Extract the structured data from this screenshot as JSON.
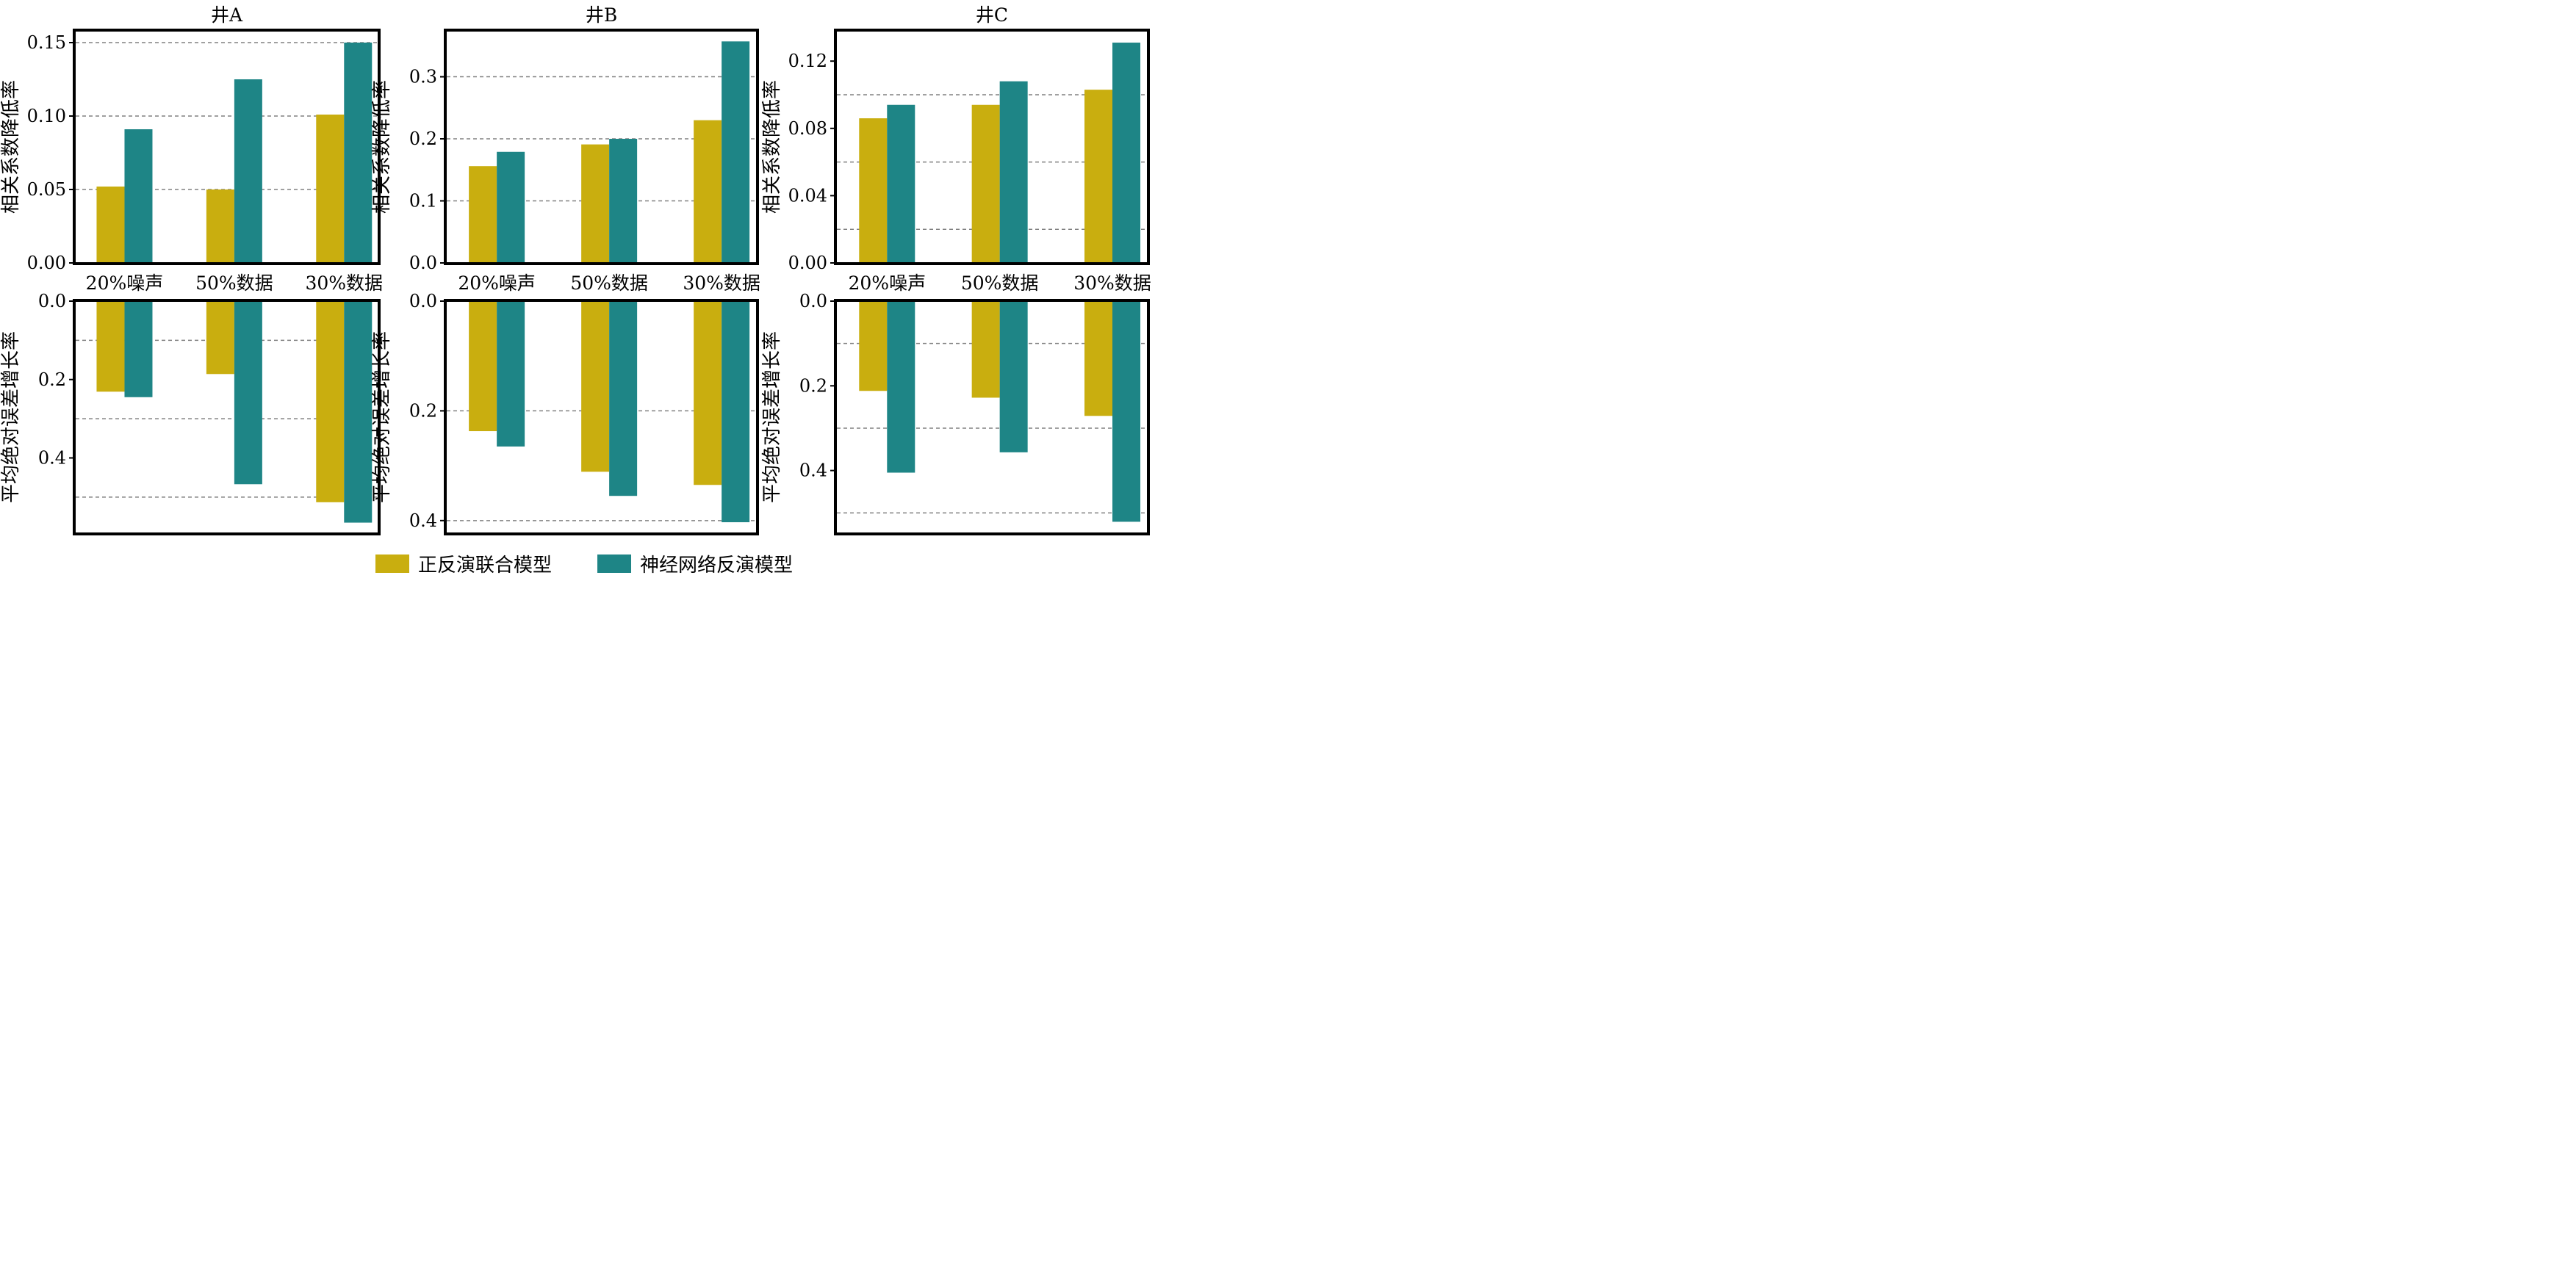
{
  "colors": {
    "series1": "#C9AE0F",
    "series2": "#1E8586"
  },
  "legend": {
    "series1_label": "正反演联合模型",
    "series2_label": "神经网络反演模型"
  },
  "chart_data": [
    {
      "id": "A-top",
      "type": "bar",
      "title": "井A",
      "ylabel": "相关系数降低率",
      "categories": [
        "20%噪声",
        "50%数据",
        "30%数据"
      ],
      "series": [
        {
          "name": "正反演联合模型",
          "values": [
            0.052,
            0.05,
            0.101
          ]
        },
        {
          "name": "神经网络反演模型",
          "values": [
            0.091,
            0.125,
            0.15
          ]
        }
      ],
      "ylim": [
        0,
        0.158
      ],
      "inverted": false,
      "ticks": [
        0,
        0.05,
        0.1,
        0.15
      ],
      "tick_labels": [
        "0.00",
        "0.05",
        "0.10",
        "0.15"
      ],
      "gridlines": [
        0.05,
        0.1,
        0.15
      ]
    },
    {
      "id": "B-top",
      "type": "bar",
      "title": "井B",
      "ylabel": "相关系数降低率",
      "categories": [
        "20%噪声",
        "50%数据",
        "30%数据"
      ],
      "series": [
        {
          "name": "正反演联合模型",
          "values": [
            0.156,
            0.191,
            0.23
          ]
        },
        {
          "name": "神经网络反演模型",
          "values": [
            0.179,
            0.2,
            0.357
          ]
        }
      ],
      "ylim": [
        0,
        0.374
      ],
      "inverted": false,
      "ticks": [
        0,
        0.1,
        0.2,
        0.3
      ],
      "tick_labels": [
        "0.0",
        "0.1",
        "0.2",
        "0.3"
      ],
      "gridlines": [
        0.1,
        0.2,
        0.3
      ]
    },
    {
      "id": "C-top",
      "type": "bar",
      "title": "井C",
      "ylabel": "相关系数降低率",
      "categories": [
        "20%噪声",
        "50%数据",
        "30%数据"
      ],
      "series": [
        {
          "name": "正反演联合模型",
          "values": [
            0.086,
            0.094,
            0.103
          ]
        },
        {
          "name": "神经网络反演模型",
          "values": [
            0.094,
            0.108,
            0.131
          ]
        }
      ],
      "ylim": [
        0,
        0.138
      ],
      "inverted": false,
      "ticks": [
        0,
        0.04,
        0.08,
        0.12
      ],
      "tick_labels": [
        "0.00",
        "0.04",
        "0.08",
        "0.12"
      ],
      "gridlines": [
        0.02,
        0.06,
        0.1
      ]
    },
    {
      "id": "A-bottom",
      "type": "bar",
      "title": "",
      "ylabel": "平均绝对误差增长率",
      "categories": [
        "20%噪声",
        "50%数据",
        "30%数据"
      ],
      "series": [
        {
          "name": "正反演联合模型",
          "values": [
            0.231,
            0.186,
            0.513
          ]
        },
        {
          "name": "神经网络反演模型",
          "values": [
            0.245,
            0.467,
            0.565
          ]
        }
      ],
      "ylim": [
        0,
        0.592
      ],
      "inverted": true,
      "ticks": [
        0,
        0.2,
        0.4
      ],
      "tick_labels": [
        "0.0",
        "0.2",
        "0.4"
      ],
      "gridlines": [
        0.1,
        0.3,
        0.5
      ]
    },
    {
      "id": "B-bottom",
      "type": "bar",
      "title": "",
      "ylabel": "平均绝对误差增长率",
      "categories": [
        "20%噪声",
        "50%数据",
        "30%数据"
      ],
      "series": [
        {
          "name": "正反演联合模型",
          "values": [
            0.237,
            0.311,
            0.335
          ]
        },
        {
          "name": "神经网络反演模型",
          "values": [
            0.265,
            0.355,
            0.403
          ]
        }
      ],
      "ylim": [
        0,
        0.423
      ],
      "inverted": true,
      "ticks": [
        0,
        0.2,
        0.4
      ],
      "tick_labels": [
        "0.0",
        "0.2",
        "0.4"
      ],
      "gridlines": [
        0.2,
        0.4
      ]
    },
    {
      "id": "C-bottom",
      "type": "bar",
      "title": "",
      "ylabel": "平均绝对误差增长率",
      "categories": [
        "20%噪声",
        "50%数据",
        "30%数据"
      ],
      "series": [
        {
          "name": "正反演联合模型",
          "values": [
            0.212,
            0.228,
            0.271
          ]
        },
        {
          "name": "神经网络反演模型",
          "values": [
            0.405,
            0.357,
            0.521
          ]
        }
      ],
      "ylim": [
        0,
        0.548
      ],
      "inverted": true,
      "ticks": [
        0,
        0.2,
        0.4
      ],
      "tick_labels": [
        "0.0",
        "0.2",
        "0.4"
      ],
      "gridlines": [
        0.1,
        0.3,
        0.5
      ]
    }
  ]
}
